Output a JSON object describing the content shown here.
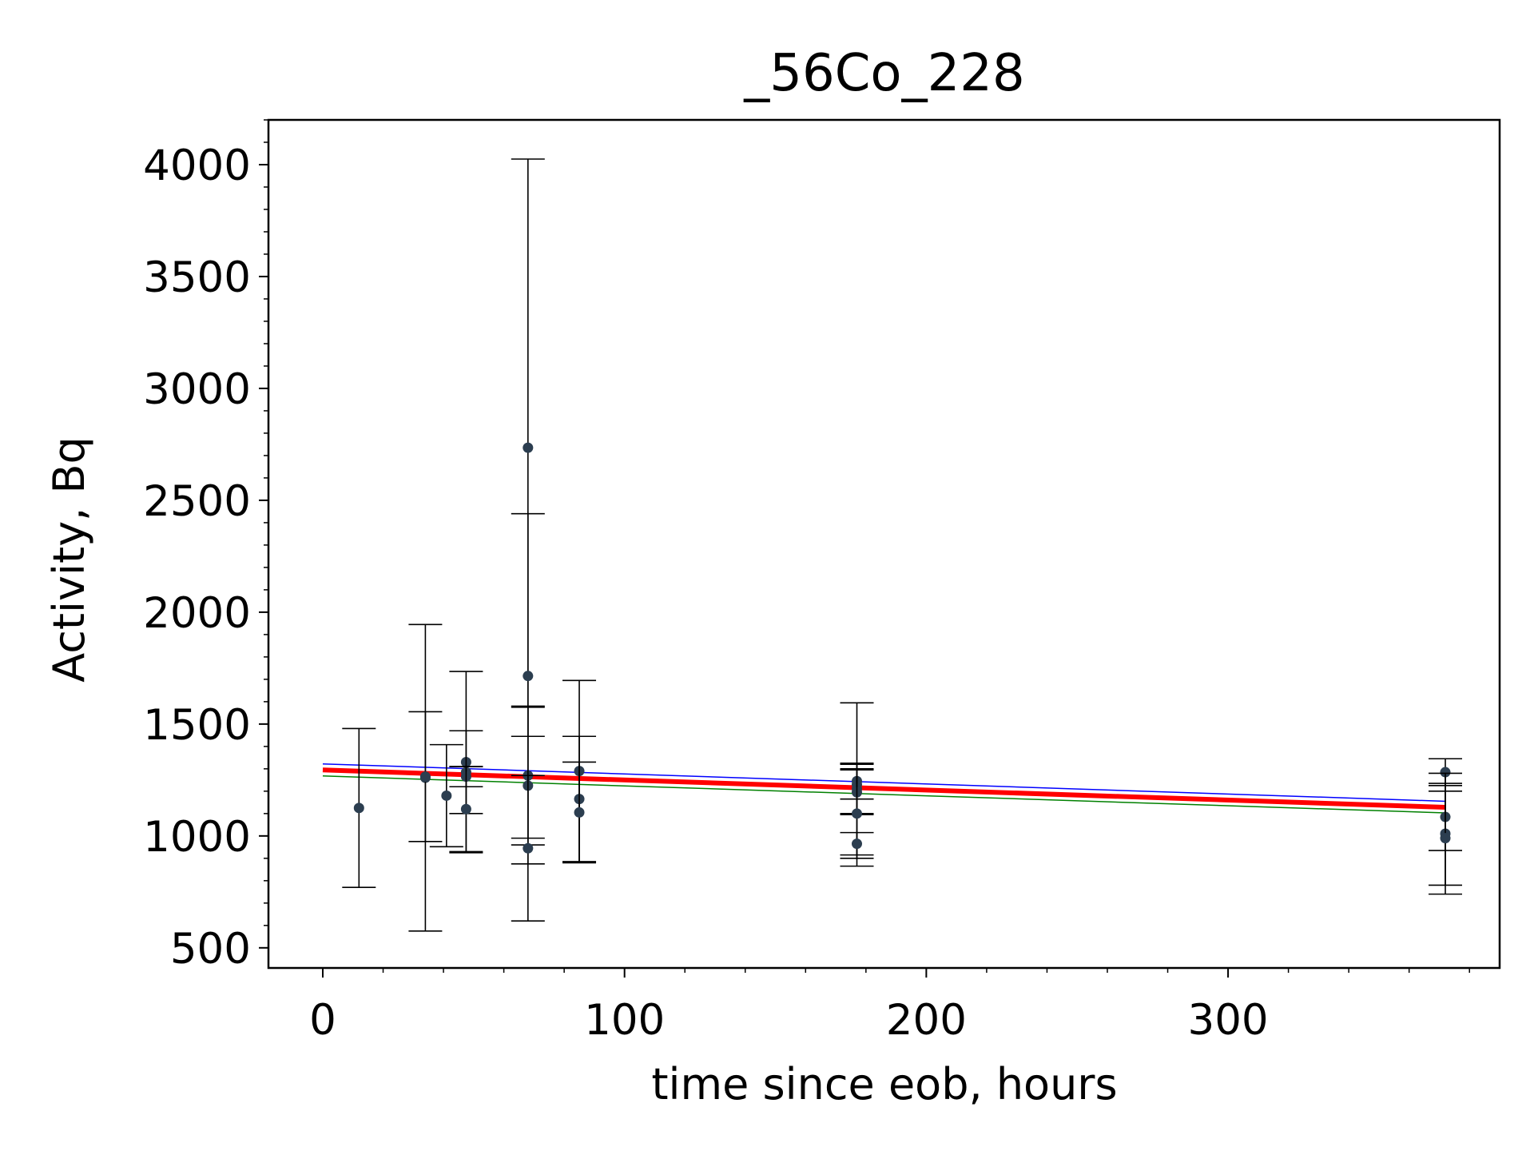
{
  "chart_data": {
    "type": "scatter",
    "title": "_56Co_228",
    "xlabel": "time since eob, hours",
    "ylabel": "Activity, Bq",
    "xlim": [
      -18,
      390
    ],
    "ylim": [
      410,
      4200
    ],
    "xticks": [
      0,
      100,
      200,
      300
    ],
    "yticks": [
      500,
      1000,
      1500,
      2000,
      2500,
      3000,
      3500,
      4000
    ],
    "grid": false,
    "legend": "none",
    "colors": {
      "points": "#2c3e50",
      "errorbars": "#000000",
      "fit": "#ff0000",
      "upper_bound": "#0000ff",
      "lower_bound": "#008000"
    },
    "points": [
      {
        "x": 12,
        "y": 1125,
        "err": 355
      },
      {
        "x": 34,
        "y": 1260,
        "err": 685
      },
      {
        "x": 34,
        "y": 1265,
        "err": 290
      },
      {
        "x": 41,
        "y": 1180,
        "err": 228
      },
      {
        "x": 47.5,
        "y": 1330,
        "err": 405
      },
      {
        "x": 47.5,
        "y": 1285,
        "err": 185
      },
      {
        "x": 47.5,
        "y": 1265,
        "err": 45
      },
      {
        "x": 47.5,
        "y": 1120,
        "err": 190
      },
      {
        "x": 68,
        "y": 2735,
        "err": 1290
      },
      {
        "x": 68,
        "y": 1715,
        "err": 725
      },
      {
        "x": 68,
        "y": 1270,
        "err": 310
      },
      {
        "x": 68,
        "y": 1225,
        "err": 350
      },
      {
        "x": 68,
        "y": 945,
        "err": 325
      },
      {
        "x": 85,
        "y": 1290,
        "err": 405
      },
      {
        "x": 85,
        "y": 1165,
        "err": 280
      },
      {
        "x": 85,
        "y": 1105,
        "err": 225
      },
      {
        "x": 177,
        "y": 1245,
        "err": 80
      },
      {
        "x": 177,
        "y": 1230,
        "err": 365
      },
      {
        "x": 177,
        "y": 1210,
        "err": 110
      },
      {
        "x": 177,
        "y": 1195,
        "err": 100
      },
      {
        "x": 177,
        "y": 1100,
        "err": 200
      },
      {
        "x": 177,
        "y": 965,
        "err": 50
      },
      {
        "x": 372,
        "y": 1285,
        "err": 60
      },
      {
        "x": 372,
        "y": 1085,
        "err": 150
      },
      {
        "x": 372,
        "y": 1010,
        "err": 270
      },
      {
        "x": 372,
        "y": 990,
        "err": 210
      }
    ],
    "fit_lines": [
      {
        "role": "fit",
        "x": [
          0,
          372
        ],
        "y": [
          1295,
          1128
        ]
      },
      {
        "role": "upper",
        "x": [
          0,
          372
        ],
        "y": [
          1322,
          1155
        ]
      },
      {
        "role": "lower",
        "x": [
          0,
          372
        ],
        "y": [
          1268,
          1103
        ]
      }
    ]
  }
}
